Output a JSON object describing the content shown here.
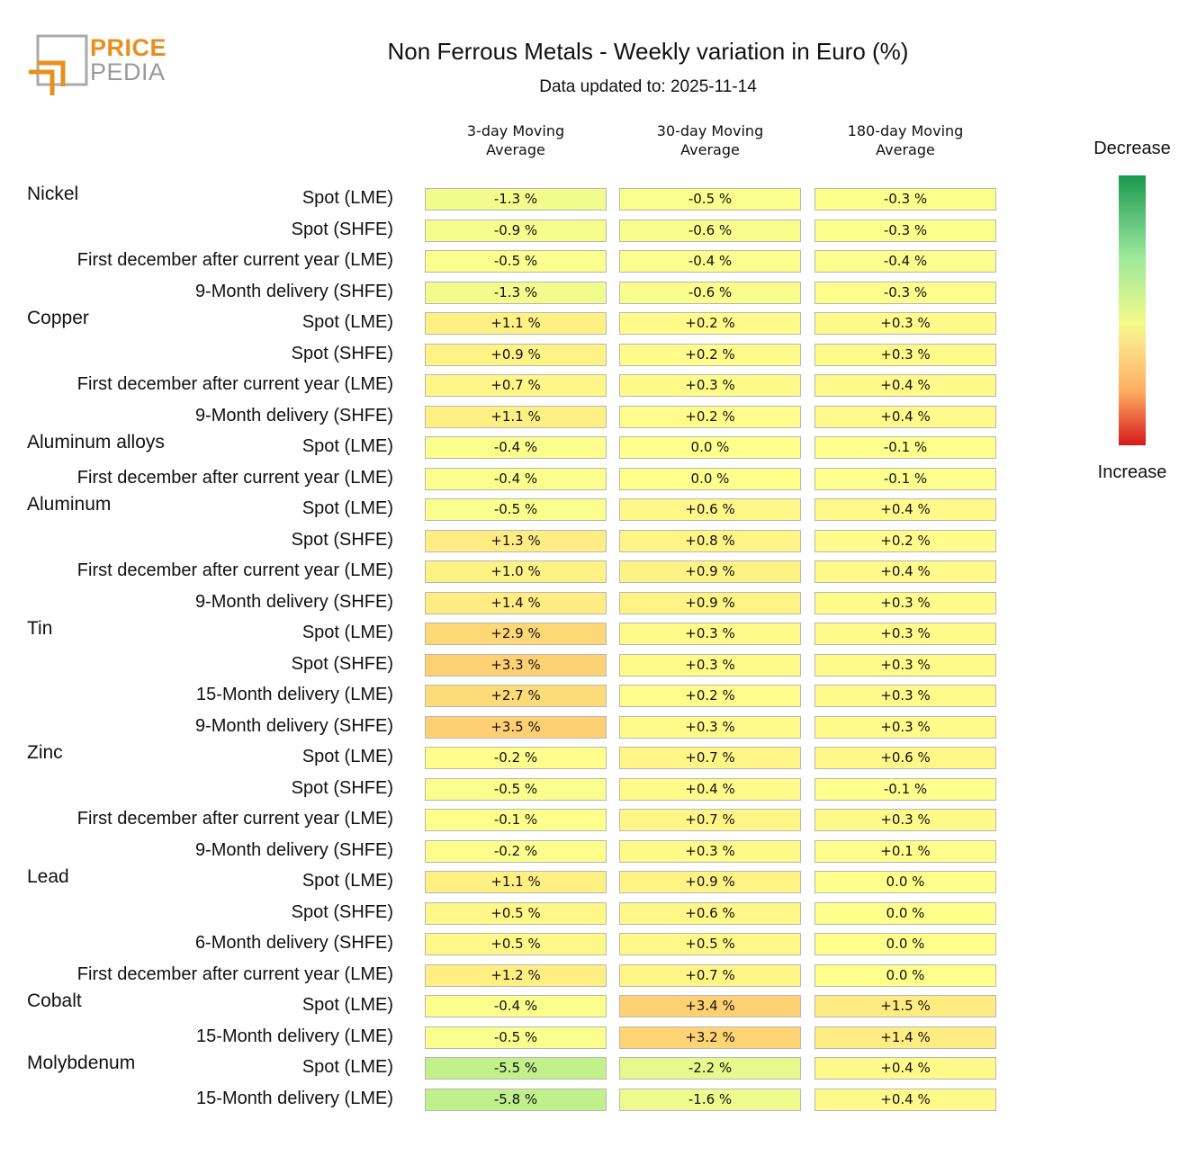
{
  "logo": {
    "line1": "PRICE",
    "line2": "PEDIA"
  },
  "title": "Non Ferrous Metals - Weekly variation in Euro (%)",
  "subtitle": "Data updated to: 2025-11-14",
  "legend": {
    "top": "Decrease",
    "bottom": "Increase"
  },
  "chart_data": {
    "type": "heatmap",
    "title": "Non Ferrous Metals - Weekly variation in Euro (%)",
    "columns": [
      "3-day Moving\nAverage",
      "30-day Moving\nAverage",
      "180-day Moving\nAverage"
    ],
    "groups": [
      {
        "name": "Nickel",
        "rows": [
          {
            "label": "Spot (LME)",
            "values": [
              "-1.3 %",
              "-0.5 %",
              "-0.3 %"
            ]
          },
          {
            "label": "Spot (SHFE)",
            "values": [
              "-0.9 %",
              "-0.6 %",
              "-0.3 %"
            ]
          },
          {
            "label": "First december after current year (LME)",
            "values": [
              "-0.5 %",
              "-0.4 %",
              "-0.4 %"
            ]
          },
          {
            "label": "9-Month delivery (SHFE)",
            "values": [
              "-1.3 %",
              "-0.6 %",
              "-0.3 %"
            ]
          }
        ]
      },
      {
        "name": "Copper",
        "rows": [
          {
            "label": "Spot (LME)",
            "values": [
              "+1.1 %",
              "+0.2 %",
              "+0.3 %"
            ]
          },
          {
            "label": "Spot (SHFE)",
            "values": [
              "+0.9 %",
              "+0.2 %",
              "+0.3 %"
            ]
          },
          {
            "label": "First december after current year (LME)",
            "values": [
              "+0.7 %",
              "+0.3 %",
              "+0.4 %"
            ]
          },
          {
            "label": "9-Month delivery (SHFE)",
            "values": [
              "+1.1 %",
              "+0.2 %",
              "+0.4 %"
            ]
          }
        ]
      },
      {
        "name": "Aluminum alloys",
        "rows": [
          {
            "label": "Spot (LME)",
            "values": [
              "-0.4 %",
              "0.0 %",
              "-0.1 %"
            ]
          },
          {
            "label": "First december after current year (LME)",
            "values": [
              "-0.4 %",
              "0.0 %",
              "-0.1 %"
            ]
          }
        ]
      },
      {
        "name": "Aluminum",
        "rows": [
          {
            "label": "Spot (LME)",
            "values": [
              "-0.5 %",
              "+0.6 %",
              "+0.4 %"
            ]
          },
          {
            "label": "Spot (SHFE)",
            "values": [
              "+1.3 %",
              "+0.8 %",
              "+0.2 %"
            ]
          },
          {
            "label": "First december after current year (LME)",
            "values": [
              "+1.0 %",
              "+0.9 %",
              "+0.4 %"
            ]
          },
          {
            "label": "9-Month delivery (SHFE)",
            "values": [
              "+1.4 %",
              "+0.9 %",
              "+0.3 %"
            ]
          }
        ]
      },
      {
        "name": "Tin",
        "rows": [
          {
            "label": "Spot (LME)",
            "values": [
              "+2.9 %",
              "+0.3 %",
              "+0.3 %"
            ]
          },
          {
            "label": "Spot (SHFE)",
            "values": [
              "+3.3 %",
              "+0.3 %",
              "+0.3 %"
            ]
          },
          {
            "label": "15-Month delivery (LME)",
            "values": [
              "+2.7 %",
              "+0.2 %",
              "+0.3 %"
            ]
          },
          {
            "label": "9-Month delivery (SHFE)",
            "values": [
              "+3.5 %",
              "+0.3 %",
              "+0.3 %"
            ]
          }
        ]
      },
      {
        "name": "Zinc",
        "rows": [
          {
            "label": "Spot (LME)",
            "values": [
              "-0.2 %",
              "+0.7 %",
              "+0.6 %"
            ]
          },
          {
            "label": "Spot (SHFE)",
            "values": [
              "-0.5 %",
              "+0.4 %",
              "-0.1 %"
            ]
          },
          {
            "label": "First december after current year (LME)",
            "values": [
              "-0.1 %",
              "+0.7 %",
              "+0.3 %"
            ]
          },
          {
            "label": "9-Month delivery (SHFE)",
            "values": [
              "-0.2 %",
              "+0.3 %",
              "+0.1 %"
            ]
          }
        ]
      },
      {
        "name": "Lead",
        "rows": [
          {
            "label": "Spot (LME)",
            "values": [
              "+1.1 %",
              "+0.9 %",
              "0.0 %"
            ]
          },
          {
            "label": "Spot (SHFE)",
            "values": [
              "+0.5 %",
              "+0.6 %",
              "0.0 %"
            ]
          },
          {
            "label": "6-Month delivery (SHFE)",
            "values": [
              "+0.5 %",
              "+0.5 %",
              "0.0 %"
            ]
          },
          {
            "label": "First december after current year (LME)",
            "values": [
              "+1.2 %",
              "+0.7 %",
              "0.0 %"
            ]
          }
        ]
      },
      {
        "name": "Cobalt",
        "rows": [
          {
            "label": "Spot (LME)",
            "values": [
              "-0.4 %",
              "+3.4 %",
              "+1.5 %"
            ]
          },
          {
            "label": "15-Month delivery (LME)",
            "values": [
              "-0.5 %",
              "+3.2 %",
              "+1.4 %"
            ]
          }
        ]
      },
      {
        "name": "Molybdenum",
        "rows": [
          {
            "label": "Spot (LME)",
            "values": [
              "-5.5 %",
              "-2.2 %",
              "+0.4 %"
            ]
          },
          {
            "label": "15-Month delivery (LME)",
            "values": [
              "-5.8 %",
              "-1.6 %",
              "+0.4 %"
            ]
          }
        ]
      }
    ]
  }
}
